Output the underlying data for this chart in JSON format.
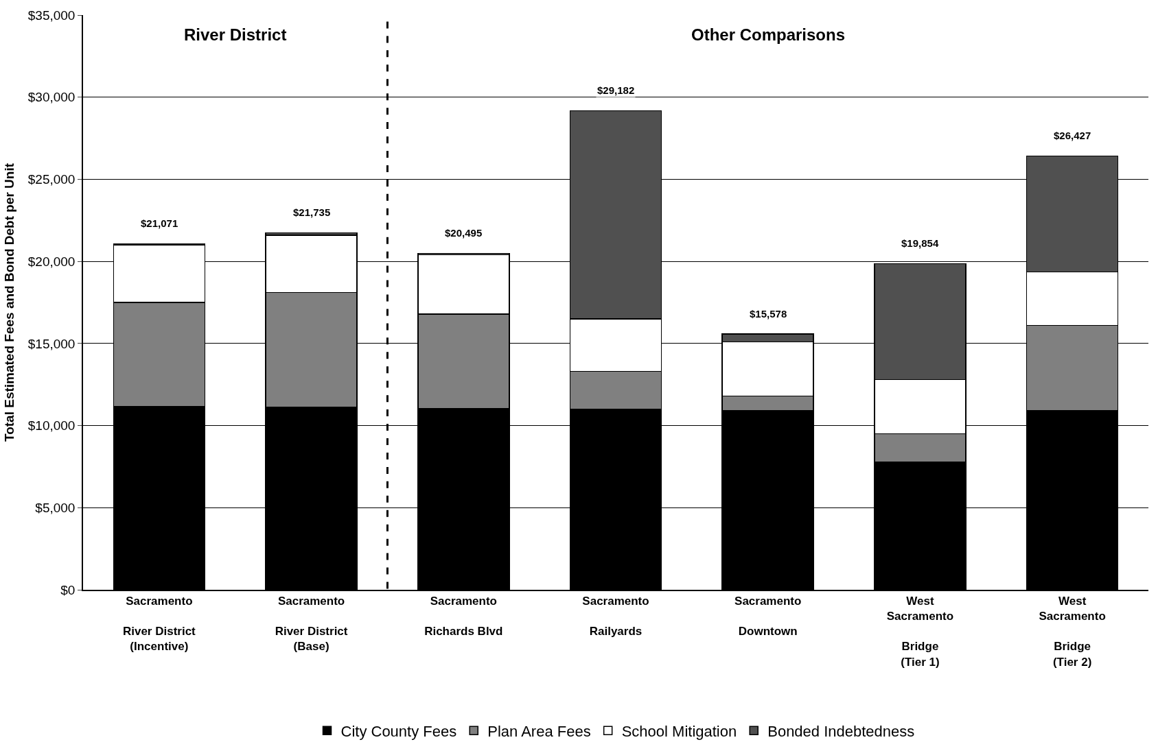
{
  "chart_data": {
    "type": "bar",
    "stacked": true,
    "ylabel": "Total Estimated Fees and Bond Debt per Unit",
    "categories": [
      "Sacramento\n\nRiver District\n(Incentive)",
      "Sacramento\n\nRiver District\n(Base)",
      "Sacramento\n\nRichards Blvd",
      "Sacramento\n\nRailyards",
      "Sacramento\n\nDowntown",
      "West\nSacramento\n\nBridge\n(Tier 1)",
      "West\nSacramento\n\nBridge\n(Tier 2)"
    ],
    "series": [
      {
        "name": "City County Fees",
        "color": "#000000",
        "values": [
          11150,
          11100,
          11050,
          11000,
          10900,
          7800,
          10900
        ]
      },
      {
        "name": "Plan Area Fees",
        "color": "#808080",
        "values": [
          6350,
          7000,
          5750,
          2300,
          900,
          1700,
          5200
        ]
      },
      {
        "name": "School Mitigation",
        "color": "#ffffff",
        "values": [
          3500,
          3500,
          3600,
          3200,
          3300,
          3300,
          3250
        ]
      },
      {
        "name": "Bonded Indebtedness",
        "color": "#505050",
        "values": [
          71,
          135,
          95,
          12682,
          478,
          7054,
          7077
        ]
      }
    ],
    "totals": [
      "$21,071",
      "$21,735",
      "$20,495",
      "$29,182",
      "$15,578",
      "$19,854",
      "$26,427"
    ],
    "ylim": [
      0,
      35000
    ],
    "yticks": [
      {
        "value": 0,
        "label": "$0"
      },
      {
        "value": 5000,
        "label": "$5,000"
      },
      {
        "value": 10000,
        "label": "$10,000"
      },
      {
        "value": 15000,
        "label": "$15,000"
      },
      {
        "value": 20000,
        "label": "$20,000"
      },
      {
        "value": 25000,
        "label": "$25,000"
      },
      {
        "value": 30000,
        "label": "$30,000"
      },
      {
        "value": 35000,
        "label": "$35,000"
      }
    ],
    "annotations": [
      "River District",
      "Other Comparisons"
    ],
    "grid": "y",
    "legend": "bottom"
  }
}
